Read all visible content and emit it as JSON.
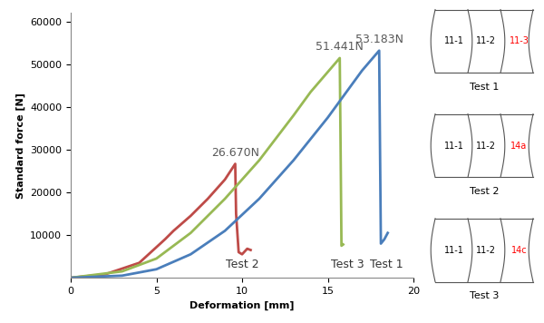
{
  "chart_data": {
    "type": "line",
    "x_label": "Deformation [mm]",
    "y_label": "Standard force [N]",
    "xlim": [
      0,
      20
    ],
    "xticks": [
      0,
      5,
      10,
      15,
      20
    ],
    "ylim": [
      0,
      62000
    ],
    "yticks": [
      10000,
      20000,
      30000,
      40000,
      50000,
      60000
    ],
    "grid": false,
    "series": [
      {
        "name": "Test 2",
        "color": "#be4b48",
        "x": [
          0,
          2,
          4,
          5.5,
          6,
          7,
          8,
          9,
          9.6,
          9.65,
          9.8,
          10,
          10.3,
          10.5
        ],
        "values": [
          0,
          800,
          3500,
          9000,
          11000,
          14500,
          18500,
          23000,
          26670,
          15000,
          6000,
          5500,
          6800,
          6500
        ]
      },
      {
        "name": "Test 3",
        "color": "#98b954",
        "x": [
          0,
          3,
          5,
          7,
          9,
          11,
          13,
          14,
          15.7,
          15.75,
          15.8,
          15.9
        ],
        "values": [
          0,
          1500,
          4500,
          10500,
          18500,
          27500,
          38000,
          43500,
          51441,
          30000,
          7500,
          7800
        ]
      },
      {
        "name": "Test 1",
        "color": "#4a7ebb",
        "x": [
          0,
          3,
          5,
          7,
          9,
          11,
          13,
          15,
          16,
          17,
          18,
          18.05,
          18.1,
          18.3,
          18.5
        ],
        "values": [
          0,
          500,
          2000,
          5500,
          11000,
          18500,
          27500,
          37500,
          43000,
          48500,
          53183,
          30000,
          8000,
          9000,
          10500
        ]
      }
    ],
    "annotations": [
      {
        "text": "26.670N",
        "series": "Test 2"
      },
      {
        "text": "51.441N",
        "series": "Test 3"
      },
      {
        "text": "53.183N",
        "series": "Test 1"
      }
    ]
  },
  "specimens": [
    {
      "title": "Test 1",
      "parts": [
        "11-1",
        "11-2",
        "11-3"
      ],
      "highlight": "11-3"
    },
    {
      "title": "Test 2",
      "parts": [
        "11-1",
        "11-2",
        "14a"
      ],
      "highlight": "14a"
    },
    {
      "title": "Test 3",
      "parts": [
        "11-1",
        "11-2",
        "14c"
      ],
      "highlight": "14c"
    }
  ],
  "highlight_color": "#ff0000"
}
